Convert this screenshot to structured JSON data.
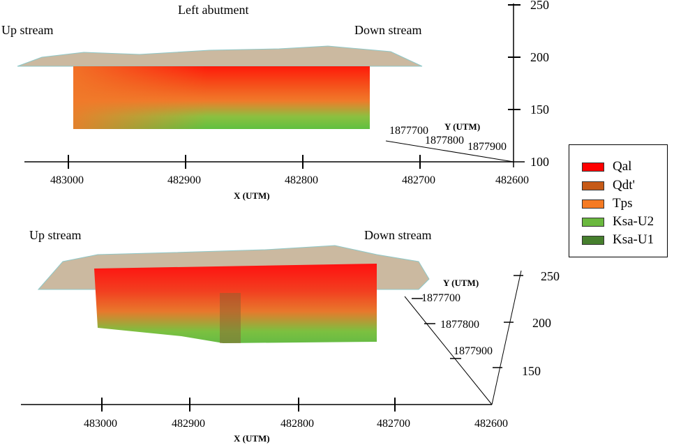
{
  "top": {
    "title": "Left abutment",
    "left_label": "Up stream",
    "right_label": "Down stream",
    "x_ticks": [
      "483000",
      "482900",
      "482800",
      "482700",
      "482600"
    ],
    "x_label": "X (UTM)",
    "y_ticks": [
      "1877700",
      "1877800",
      "1877900"
    ],
    "y_label": "Y (UTM)",
    "z_ticks": [
      "100",
      "150",
      "200",
      "250"
    ]
  },
  "bottom": {
    "left_label": "Up stream",
    "right_label": "Down stream",
    "x_ticks": [
      "483000",
      "482900",
      "482800",
      "482700",
      "482600"
    ],
    "x_label": "X (UTM)",
    "y_ticks": [
      "1877700",
      "1877800",
      "1877900"
    ],
    "y_label": "Y (UTM)",
    "z_ticks": [
      "150",
      "200",
      "250"
    ]
  },
  "legend": [
    {
      "label": "Qal",
      "color": "#ff0000"
    },
    {
      "label": "Qdt'",
      "color": "#c65a17"
    },
    {
      "label": "Tps",
      "color": "#f57a22"
    },
    {
      "label": "Ksa-U2",
      "color": "#6ab83e"
    },
    {
      "label": "Ksa-U1",
      "color": "#467f2d"
    }
  ]
}
